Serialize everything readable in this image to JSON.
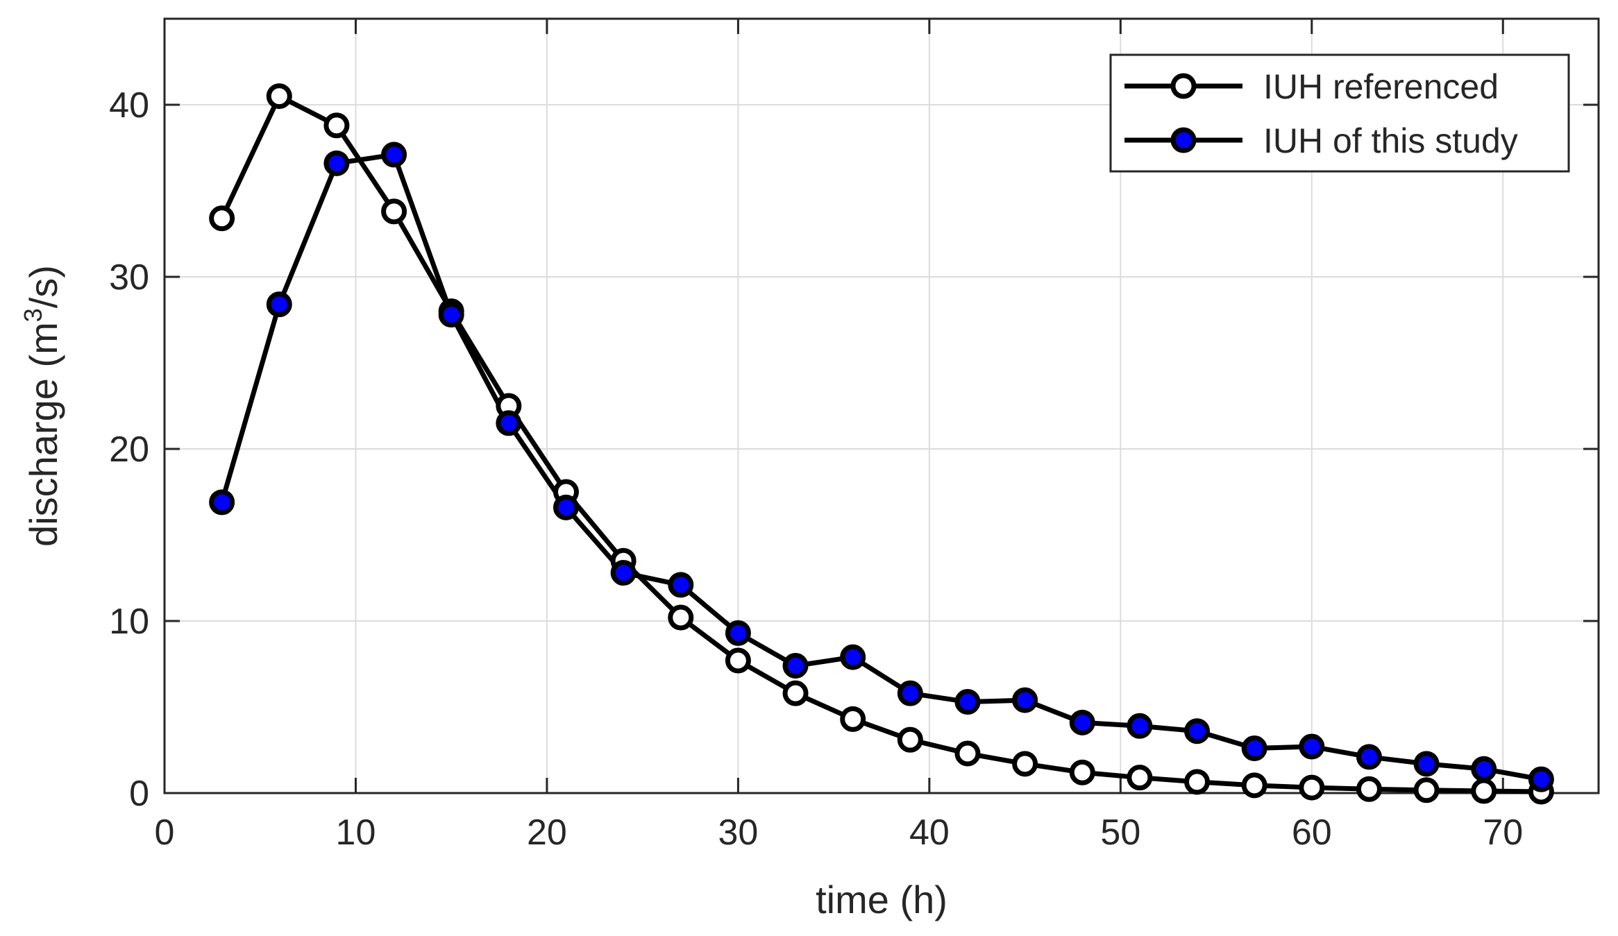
{
  "chart_data": {
    "type": "line",
    "title": "",
    "xlabel": "time (h)",
    "ylabel_main": "discharge (m",
    "ylabel_sup": "3",
    "ylabel_tail": "/s)",
    "xlim": [
      0,
      75
    ],
    "ylim": [
      0,
      45
    ],
    "xticks": [
      0,
      10,
      20,
      30,
      40,
      50,
      60,
      70
    ],
    "yticks": [
      0,
      10,
      20,
      30,
      40
    ],
    "xtick_labels": [
      "0",
      "10",
      "20",
      "30",
      "40",
      "50",
      "60",
      "70"
    ],
    "ytick_labels": [
      "0",
      "10",
      "20",
      "30",
      "40"
    ],
    "grid": true,
    "legend_position": "top-right",
    "x": [
      3,
      6,
      9,
      12,
      15,
      18,
      21,
      24,
      27,
      30,
      33,
      36,
      39,
      42,
      45,
      48,
      51,
      54,
      57,
      60,
      63,
      66,
      69,
      72
    ],
    "series": [
      {
        "name": "IUH referenced",
        "marker_fill": "#ffffff",
        "line_color": "#000000",
        "values": [
          33.4,
          40.5,
          38.8,
          33.8,
          28.0,
          22.5,
          17.5,
          13.5,
          10.2,
          7.7,
          5.8,
          4.3,
          3.1,
          2.3,
          1.7,
          1.2,
          0.9,
          0.65,
          0.45,
          0.32,
          0.23,
          0.17,
          0.12,
          0.08
        ]
      },
      {
        "name": "IUH of this study",
        "marker_fill": "#0000ff",
        "line_color": "#000000",
        "values": [
          16.9,
          28.4,
          36.6,
          37.1,
          27.8,
          21.5,
          16.6,
          12.8,
          12.1,
          9.3,
          7.4,
          7.9,
          5.8,
          5.3,
          5.4,
          4.1,
          3.9,
          3.6,
          2.6,
          2.7,
          2.1,
          1.7,
          1.4,
          0.8
        ]
      }
    ]
  }
}
